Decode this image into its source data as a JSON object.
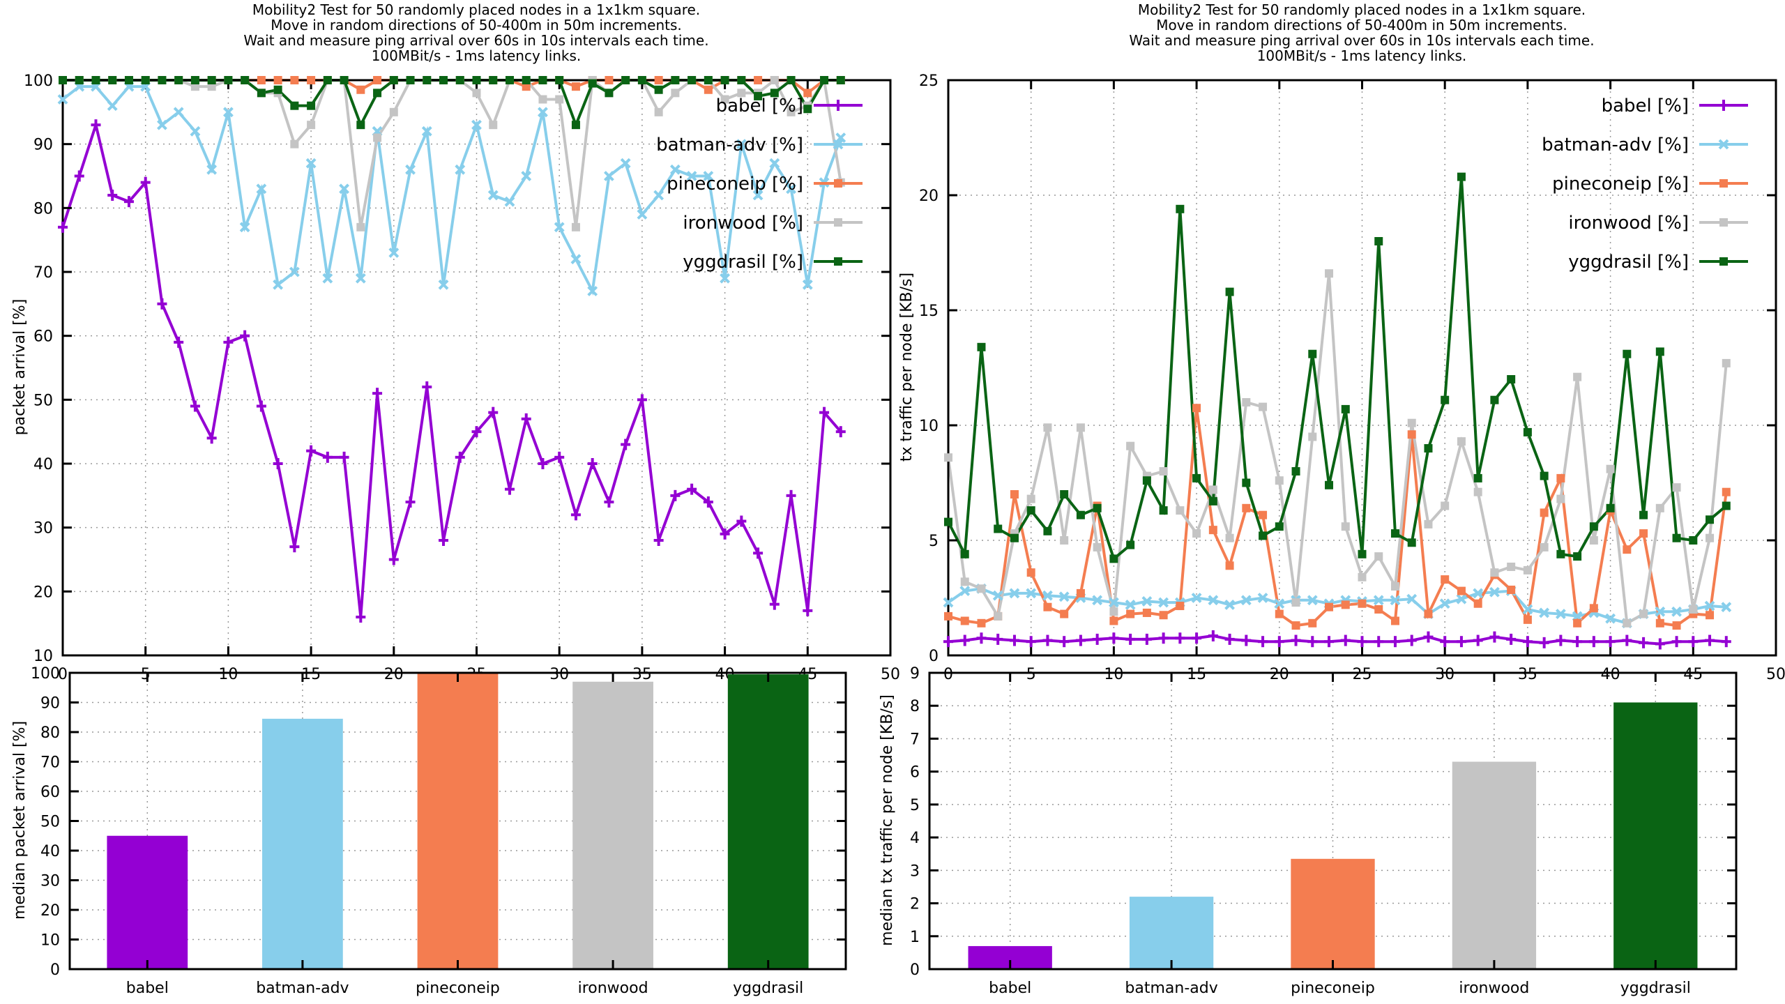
{
  "title_lines": [
    "Mobility2 Test for 50 randomly placed nodes in a 1x1km square.",
    "Move in random directions of 50-400m in 50m increments.",
    "Wait and measure ping arrival over 60s in 10s intervals each time.",
    "100MBit/s - 1ms latency links."
  ],
  "protocols": [
    {
      "name": "babel",
      "label": "babel [%]",
      "color": "#9400d3",
      "marker": "plus"
    },
    {
      "name": "batman-adv",
      "label": "batman-adv [%]",
      "color": "#87ceeb",
      "marker": "x"
    },
    {
      "name": "pineconeip",
      "label": "pineconeip [%]",
      "color": "#f47d50",
      "marker": "square"
    },
    {
      "name": "ironwood",
      "label": "ironwood [%]",
      "color": "#c4c4c4",
      "marker": "square"
    },
    {
      "name": "yggdrasil",
      "label": "yggdrasil [%]",
      "color": "#0a6414",
      "marker": "square"
    }
  ],
  "chart_data": [
    {
      "id": "packet-arrival-line",
      "type": "line",
      "position": "top-left",
      "ylabel": "packet arrival [%]",
      "xlabel": "",
      "xlim": [
        0,
        50
      ],
      "ylim": [
        10,
        100
      ],
      "xtick_step": 5,
      "ytick_step": 10,
      "grid": true,
      "legend_position": "top-right",
      "series": [
        {
          "name": "babel",
          "values": [
            77,
            85,
            93,
            82,
            81,
            84,
            65,
            59,
            49,
            44,
            59,
            60,
            49,
            40,
            27,
            42,
            41,
            41,
            16,
            51,
            25,
            34,
            52,
            28,
            41,
            45,
            48,
            36,
            47,
            40,
            41,
            32,
            40,
            34,
            43,
            50,
            28,
            35,
            36,
            34,
            29,
            31,
            26,
            18,
            35,
            17,
            48,
            45
          ]
        },
        {
          "name": "batman-adv",
          "values": [
            97,
            99,
            99,
            96,
            99,
            99,
            93,
            95,
            92,
            86,
            95,
            77,
            83,
            68,
            70,
            87,
            69,
            83,
            69,
            92,
            73,
            86,
            92,
            68,
            86,
            93,
            82,
            81,
            85,
            95,
            77,
            72,
            67,
            85,
            87,
            79,
            82,
            86,
            85,
            85,
            69,
            90,
            82,
            87,
            83,
            68,
            84,
            91
          ]
        },
        {
          "name": "pineconeip",
          "values": [
            100,
            100,
            100,
            100,
            100,
            100,
            100,
            100,
            100,
            100,
            100,
            100,
            100,
            100,
            100,
            100,
            100,
            100,
            98.5,
            100,
            100,
            100,
            100,
            100,
            100,
            100,
            100,
            100,
            99,
            100,
            100,
            99,
            100,
            100,
            100,
            100,
            100,
            100,
            100,
            98.5,
            100,
            100,
            100,
            100,
            100,
            98,
            100,
            100
          ]
        },
        {
          "name": "ironwood",
          "values": [
            100,
            100,
            100,
            100,
            100,
            100,
            100,
            100,
            99,
            99,
            100,
            100,
            98,
            98,
            90,
            93,
            100,
            100,
            77,
            91,
            95,
            100,
            100,
            100,
            100,
            98,
            93,
            100,
            100,
            97,
            97,
            77,
            100,
            98,
            100,
            100,
            95,
            98,
            100,
            100,
            97,
            98,
            98,
            100,
            95,
            96,
            100,
            84
          ]
        },
        {
          "name": "yggdrasil",
          "values": [
            100,
            100,
            100,
            100,
            100,
            100,
            100,
            100,
            100,
            100,
            100,
            100,
            98,
            98.5,
            96,
            96,
            100,
            100,
            93,
            98,
            100,
            100,
            100,
            100,
            100,
            100,
            100,
            100,
            100,
            100,
            100,
            93,
            99.5,
            98,
            100,
            100,
            98.5,
            100,
            100,
            100,
            100,
            100,
            97.5,
            98,
            100,
            95.5,
            100,
            100
          ]
        }
      ]
    },
    {
      "id": "tx-traffic-line",
      "type": "line",
      "position": "top-right",
      "ylabel": "tx traffic per node [KB/s]",
      "xlabel": "",
      "xlim": [
        0,
        50
      ],
      "ylim": [
        0,
        25
      ],
      "xtick_step": 5,
      "ytick_step": 5,
      "grid": true,
      "legend_position": "top-right",
      "series": [
        {
          "name": "babel",
          "values": [
            0.6,
            0.65,
            0.75,
            0.7,
            0.65,
            0.6,
            0.65,
            0.6,
            0.65,
            0.7,
            0.75,
            0.7,
            0.7,
            0.75,
            0.75,
            0.75,
            0.85,
            0.7,
            0.65,
            0.6,
            0.6,
            0.65,
            0.6,
            0.6,
            0.65,
            0.6,
            0.6,
            0.6,
            0.65,
            0.8,
            0.6,
            0.6,
            0.65,
            0.8,
            0.7,
            0.6,
            0.55,
            0.65,
            0.6,
            0.6,
            0.6,
            0.65,
            0.55,
            0.5,
            0.6,
            0.6,
            0.65,
            0.6
          ]
        },
        {
          "name": "batman-adv",
          "values": [
            2.3,
            2.8,
            2.9,
            2.6,
            2.7,
            2.7,
            2.6,
            2.55,
            2.5,
            2.4,
            2.3,
            2.2,
            2.35,
            2.3,
            2.3,
            2.5,
            2.4,
            2.2,
            2.4,
            2.5,
            2.25,
            2.4,
            2.4,
            2.25,
            2.4,
            2.35,
            2.4,
            2.4,
            2.45,
            1.8,
            2.25,
            2.45,
            2.7,
            2.75,
            2.8,
            2.0,
            1.85,
            1.8,
            1.7,
            1.85,
            1.6,
            1.4,
            1.8,
            1.9,
            1.9,
            2.0,
            2.15,
            2.1
          ]
        },
        {
          "name": "pineconeip",
          "values": [
            1.7,
            1.5,
            1.4,
            1.7,
            7.0,
            3.6,
            2.1,
            1.8,
            2.7,
            6.5,
            1.5,
            1.8,
            1.85,
            1.75,
            2.15,
            10.75,
            5.45,
            3.9,
            6.4,
            6.1,
            1.8,
            1.3,
            1.4,
            2.1,
            2.2,
            2.25,
            2.0,
            1.5,
            9.6,
            1.8,
            3.3,
            2.8,
            2.25,
            3.5,
            2.85,
            1.55,
            6.2,
            7.7,
            1.4,
            2.05,
            6.3,
            4.6,
            5.3,
            1.4,
            1.3,
            1.8,
            1.75,
            7.1
          ]
        },
        {
          "name": "ironwood",
          "values": [
            8.6,
            3.2,
            2.9,
            1.7,
            5.3,
            6.8,
            9.9,
            5.0,
            9.9,
            4.7,
            1.9,
            9.1,
            7.8,
            8.0,
            6.3,
            5.3,
            7.2,
            5.1,
            11.0,
            10.8,
            7.6,
            2.3,
            9.5,
            16.6,
            5.6,
            3.4,
            4.3,
            3.0,
            10.1,
            5.7,
            6.5,
            9.3,
            7.1,
            3.6,
            3.85,
            3.7,
            4.7,
            6.8,
            12.1,
            5.0,
            8.1,
            1.4,
            1.8,
            6.4,
            7.3,
            2.0,
            5.1,
            12.7
          ]
        },
        {
          "name": "yggdrasil",
          "values": [
            5.8,
            4.4,
            13.4,
            5.5,
            5.1,
            6.3,
            5.4,
            7.0,
            6.1,
            6.4,
            4.2,
            4.8,
            7.6,
            6.3,
            19.4,
            7.7,
            6.7,
            15.8,
            7.5,
            5.2,
            5.6,
            8.0,
            13.1,
            7.4,
            10.7,
            4.4,
            18.0,
            5.3,
            4.9,
            9.0,
            11.1,
            20.8,
            7.7,
            11.1,
            12.0,
            9.7,
            7.8,
            4.4,
            4.3,
            5.6,
            6.4,
            13.1,
            6.1,
            13.2,
            5.1,
            5.0,
            5.9,
            6.5
          ]
        }
      ]
    },
    {
      "id": "median-packet-arrival-bar",
      "type": "bar",
      "position": "bottom-left",
      "ylabel": "median packet arrival [%]",
      "xlabel": "",
      "ylim": [
        0,
        100
      ],
      "ytick_step": 10,
      "grid": true,
      "categories": [
        "babel",
        "batman-adv",
        "pineconeip",
        "ironwood",
        "yggdrasil"
      ],
      "values": [
        45,
        84.5,
        100,
        97,
        99.5
      ]
    },
    {
      "id": "median-tx-traffic-bar",
      "type": "bar",
      "position": "bottom-right",
      "ylabel": "median tx traffic per node [KB/s]",
      "xlabel": "",
      "ylim": [
        0,
        9
      ],
      "ytick_step": 1,
      "grid": true,
      "categories": [
        "babel",
        "batman-adv",
        "pineconeip",
        "ironwood",
        "yggdrasil"
      ],
      "values": [
        0.7,
        2.2,
        3.35,
        6.3,
        8.1
      ]
    }
  ]
}
